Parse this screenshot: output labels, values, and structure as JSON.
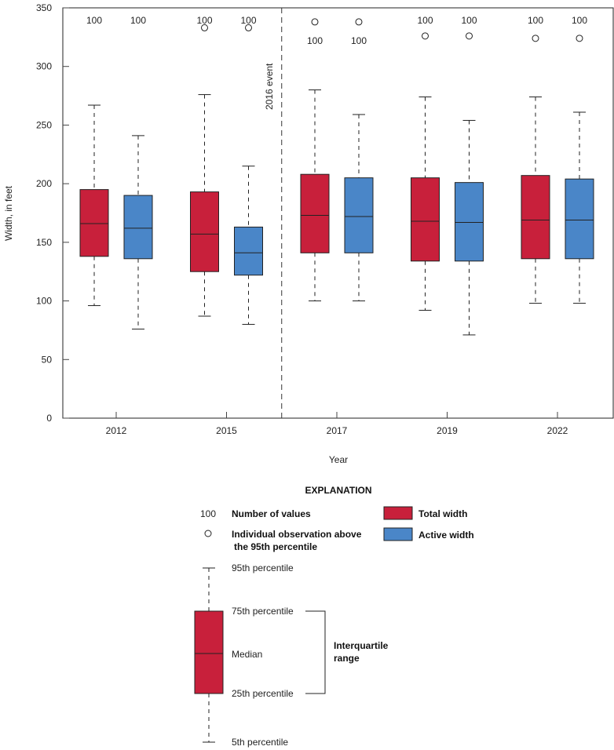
{
  "chart_data": {
    "type": "box",
    "xlabel": "Year",
    "ylabel": "Width, in feet",
    "ylim": [
      0,
      350
    ],
    "yticks": [
      0,
      50,
      100,
      150,
      200,
      250,
      300,
      350
    ],
    "categories": [
      "2012",
      "2015",
      "2017",
      "2019",
      "2022"
    ],
    "grid": false,
    "annotation": {
      "label": "2016 event",
      "between": [
        "2015",
        "2017"
      ]
    },
    "series": [
      {
        "name": "Total width",
        "color": "#c8203b",
        "boxes": [
          {
            "p5": 96,
            "q1": 138,
            "median": 166,
            "q3": 195,
            "p95": 267,
            "n": "100",
            "outliers": []
          },
          {
            "p5": 87,
            "q1": 125,
            "median": 157,
            "q3": 193,
            "p95": 276,
            "n": "100",
            "outliers": [
              333
            ]
          },
          {
            "p5": 100,
            "q1": 141,
            "median": 173,
            "q3": 208,
            "p95": 280,
            "n": "100",
            "outliers": [
              338
            ]
          },
          {
            "p5": 92,
            "q1": 134,
            "median": 168,
            "q3": 205,
            "p95": 274,
            "n": "100",
            "outliers": [
              326
            ]
          },
          {
            "p5": 98,
            "q1": 136,
            "median": 169,
            "q3": 207,
            "p95": 274,
            "n": "100",
            "outliers": [
              324
            ]
          }
        ]
      },
      {
        "name": "Active width",
        "color": "#4a86c8",
        "boxes": [
          {
            "p5": 76,
            "q1": 136,
            "median": 162,
            "q3": 190,
            "p95": 241,
            "n": "100",
            "outliers": []
          },
          {
            "p5": 80,
            "q1": 122,
            "median": 141,
            "q3": 163,
            "p95": 215,
            "n": "100",
            "outliers": [
              333
            ]
          },
          {
            "p5": 100,
            "q1": 141,
            "median": 172,
            "q3": 205,
            "p95": 259,
            "n": "100",
            "outliers": [
              338
            ]
          },
          {
            "p5": 71,
            "q1": 134,
            "median": 167,
            "q3": 201,
            "p95": 254,
            "n": "100",
            "outliers": [
              326
            ]
          },
          {
            "p5": 98,
            "q1": 136,
            "median": 169,
            "q3": 204,
            "p95": 261,
            "n": "100",
            "outliers": [
              324
            ]
          }
        ]
      }
    ]
  },
  "explanation": {
    "title": "EXPLANATION",
    "n_example": "100",
    "n_label": "Number of values",
    "outlier_label_1": "Individual observation above",
    "outlier_label_2": "the 95th percentile",
    "total_label": "Total width",
    "active_label": "Active width",
    "p95": "95th percentile",
    "p75": "75th percentile",
    "median": "Median",
    "p25": "25th percentile",
    "p5": "5th percentile",
    "iqr_1": "Interquartile",
    "iqr_2": "range"
  }
}
